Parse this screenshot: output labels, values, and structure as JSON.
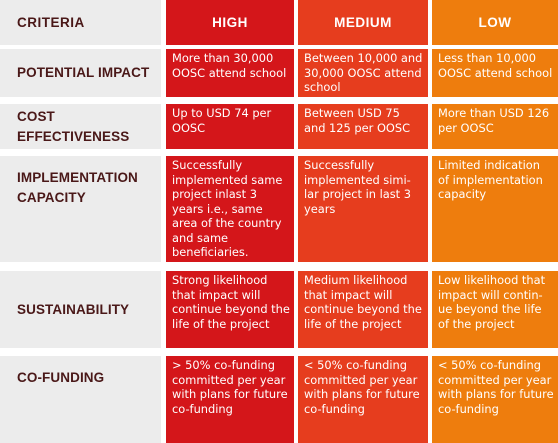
{
  "colors": {
    "criteria_bg": "#ececec",
    "criteria_text": "#4a1818",
    "high": "#d4161a",
    "medium": "#e63d1e",
    "low": "#ee7d0d"
  },
  "header": {
    "criteria": "CRITERIA",
    "high": "HIGH",
    "medium": "MEDIUM",
    "low": "LOW"
  },
  "rows": [
    {
      "criterion": "POTENTIAL IMPACT",
      "high": "More than 30,000 OOSC attend school",
      "medium": "Between 10,000 and 30,000 OOSC attend school",
      "low": "Less than 10,000 OOSC attend school"
    },
    {
      "criterion": "COST EFFECTIVENESS",
      "high": "Up to USD 74 per OOSC",
      "medium": "Between USD 75 and 125 per OOSC",
      "low": "More than USD 126 per OOSC"
    },
    {
      "criterion": "IMPLEMENTATION CAPACITY",
      "high": "Successfully implemented same project inlast 3 years i.e., same area of the country and same beneficiaries.",
      "medium": "Successfully implemented simi-lar project in last 3 years",
      "low": "Limited indication of implementation capacity"
    },
    {
      "criterion": "SUSTAINABILITY",
      "high": "Strong likelihood that impact will continue beyond the life of the project",
      "medium": "Medium likelihood that impact will continue beyond the life of the project",
      "low": "Low likelihood that impact will contin-ue beyond the life of the project"
    },
    {
      "criterion": "CO-FUNDING",
      "high": "> 50% co-funding committed per year with plans for future co-funding",
      "medium": "< 50% co-funding committed per year with plans for future co-funding",
      "low": "< 50% co-funding committed per year with plans for future co-funding"
    }
  ]
}
